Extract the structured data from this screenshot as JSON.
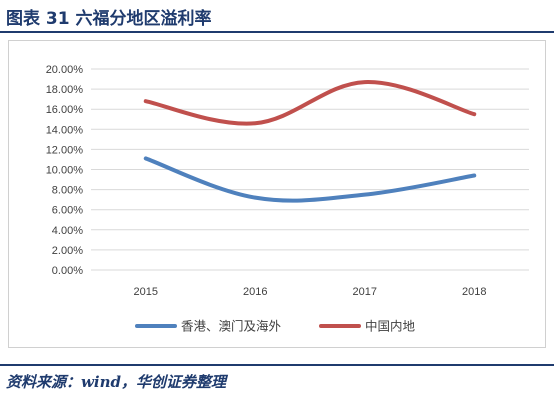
{
  "header": {
    "title": "图表 31    六福分地区溢利率"
  },
  "chart_data": {
    "type": "line",
    "title": "",
    "xlabel": "",
    "ylabel": "",
    "categories": [
      "2015",
      "2016",
      "2017",
      "2018"
    ],
    "ylim": [
      0,
      0.2
    ],
    "yticks": [
      "0.00%",
      "2.00%",
      "4.00%",
      "6.00%",
      "8.00%",
      "10.00%",
      "12.00%",
      "14.00%",
      "16.00%",
      "18.00%",
      "20.00%"
    ],
    "grid": true,
    "legend_position": "bottom",
    "series": [
      {
        "name": "香港、澳门及海外",
        "color": "#4f81bd",
        "values": [
          0.111,
          0.072,
          0.075,
          0.094
        ]
      },
      {
        "name": "中国内地",
        "color": "#c0504d",
        "values": [
          0.168,
          0.146,
          0.187,
          0.155
        ]
      }
    ]
  },
  "footer": {
    "source": "资料来源：wind，华创证券整理"
  }
}
